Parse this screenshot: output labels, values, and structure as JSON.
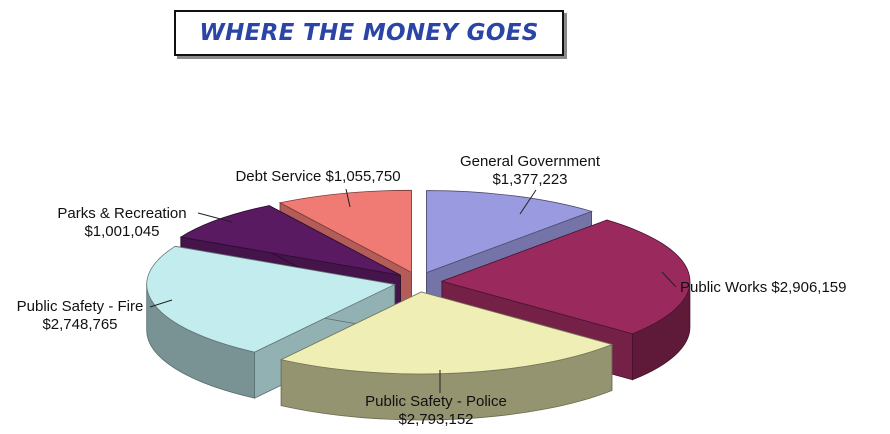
{
  "title": "WHERE THE MONEY GOES",
  "chart_data": {
    "type": "pie",
    "title": "WHERE THE MONEY GOES",
    "slices": [
      {
        "label": "General Government",
        "value": 1377223,
        "value_text": "$1,377,223",
        "color": "#9a9ae0"
      },
      {
        "label": "Public Works",
        "value": 2906159,
        "value_text": "$2,906,159",
        "color": "#9a2a5e"
      },
      {
        "label": "Public Safety - Police",
        "value": 2793152,
        "value_text": "$2,793,152",
        "color": "#eeeeb5"
      },
      {
        "label": "Public Safety - Fire",
        "value": 2748765,
        "value_text": "$2,748,765",
        "color": "#c3ecee"
      },
      {
        "label": "Parks & Recreation",
        "value": 1001045,
        "value_text": "$1,001,045",
        "color": "#5a1a62"
      },
      {
        "label": "Debt Service",
        "value": 1055750,
        "value_text": "$1,055,750",
        "color": "#f07a74"
      }
    ],
    "exploded": true,
    "three_d": true,
    "legend": "none"
  }
}
